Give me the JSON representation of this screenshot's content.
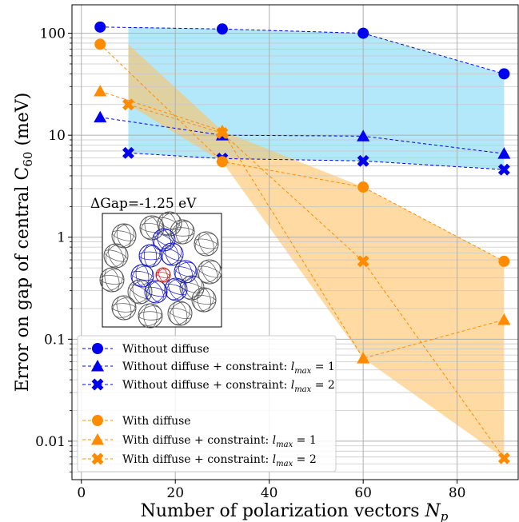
{
  "chart_data": {
    "type": "line",
    "xlabel": "Number of polarization vectors",
    "xlabel_symbol": "N",
    "xlabel_sub": "p",
    "ylabel": "Error on gap of central C",
    "ylabel_sub": "60",
    "ylabel_unit": "(meV)",
    "yscale": "log",
    "xlim": [
      -2,
      93
    ],
    "ylim": [
      0.0042,
      190
    ],
    "x_ticks": [
      0,
      20,
      40,
      60,
      80
    ],
    "x_tick_labels": [
      "0",
      "20",
      "40",
      "60",
      "80"
    ],
    "y_ticks": [
      0.01,
      0.1,
      1,
      10,
      100
    ],
    "y_tick_labels": [
      "0.01",
      "0.1",
      "1",
      "10",
      "100"
    ],
    "grid": true,
    "legend_position": "lower-left",
    "inset_label": "ΔGap=-1.25 eV",
    "series": [
      {
        "name": "Without diffuse",
        "group": "without",
        "marker": "circle",
        "color": "#0000ee",
        "x": [
          4,
          30,
          60,
          90
        ],
        "y": [
          115,
          110,
          100,
          40
        ]
      },
      {
        "name": "Without diffuse + constraint:",
        "math": "l",
        "sub": "max",
        "eq": " = 1",
        "group": "without",
        "marker": "triangle",
        "color": "#0000ee",
        "x": [
          4,
          30,
          60,
          90
        ],
        "y": [
          15,
          10,
          9.8,
          6.6
        ]
      },
      {
        "name": "Without diffuse + constraint:",
        "math": "l",
        "sub": "max",
        "eq": " = 2",
        "group": "without",
        "marker": "x",
        "color": "#0000ee",
        "x": [
          10,
          30,
          60,
          90
        ],
        "y": [
          6.7,
          5.9,
          5.6,
          4.6
        ]
      },
      {
        "name": "With diffuse",
        "group": "with",
        "marker": "circle",
        "color": "#ff8c00",
        "x": [
          4,
          30,
          60,
          90
        ],
        "y": [
          78,
          5.5,
          3.1,
          0.58
        ]
      },
      {
        "name": "With diffuse + constraint:",
        "math": "l",
        "sub": "max",
        "eq": " = 1",
        "group": "with",
        "marker": "triangle",
        "color": "#ff8c00",
        "x": [
          4,
          30,
          60,
          90
        ],
        "y": [
          27,
          11,
          0.065,
          0.155
        ]
      },
      {
        "name": "With diffuse + constraint:",
        "math": "l",
        "sub": "max",
        "eq": " = 2",
        "group": "with",
        "marker": "x",
        "color": "#ff8c00",
        "x": [
          10,
          30,
          60,
          90
        ],
        "y": [
          20,
          10.5,
          0.58,
          0.0068
        ]
      }
    ],
    "bands": [
      {
        "group": "without",
        "color": "#7fd8f5",
        "x": [
          10,
          30,
          60,
          90
        ],
        "upper": [
          115,
          110,
          100,
          40
        ],
        "lower": [
          6.7,
          5.9,
          5.6,
          4.6
        ]
      },
      {
        "group": "with",
        "color": "#ffc266",
        "x": [
          10,
          30,
          60,
          90
        ],
        "upper": [
          78,
          11,
          3.1,
          0.58
        ],
        "lower": [
          20,
          5.5,
          0.065,
          0.0068
        ]
      }
    ]
  }
}
